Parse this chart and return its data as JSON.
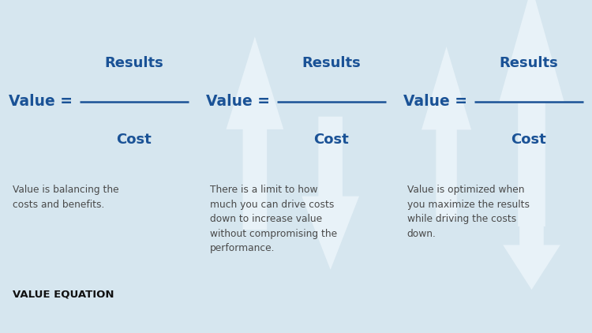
{
  "bg_color": "#d6e6ef",
  "panel_bg": "#d6e6ef",
  "divider_color": "#a8c4d4",
  "blue_text": "#1a5296",
  "dark_text": "#4a4a4a",
  "black_text": "#111111",
  "arrow_color": "#e8f2f8",
  "figsize": [
    7.5,
    4.22
  ],
  "dpi": 100,
  "panels": [
    {
      "id": 0,
      "body_text": "Value is balancing the\ncosts and benefits.",
      "footer_text": "VALUE EQUATION",
      "footer_bold": true
    },
    {
      "id": 1,
      "body_text": "There is a limit to how\nmuch you can drive costs\ndown to increase value\nwithout compromising the\nperformance.",
      "footer_text": "",
      "footer_bold": false
    },
    {
      "id": 2,
      "body_text": "Value is optimized when\nyou maximize the results\nwhile driving the costs\ndown.",
      "footer_text": "",
      "footer_bold": false
    }
  ]
}
